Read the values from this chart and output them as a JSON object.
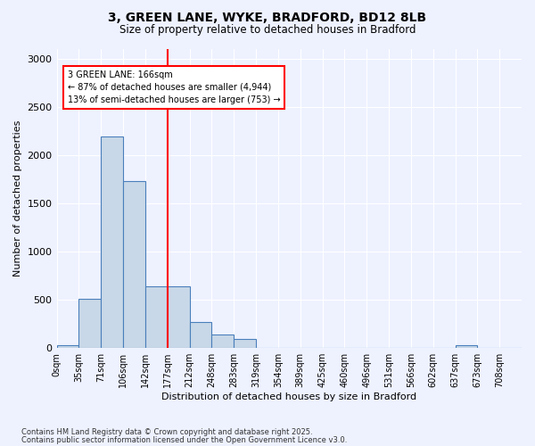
{
  "title_line1": "3, GREEN LANE, WYKE, BRADFORD, BD12 8LB",
  "title_line2": "Size of property relative to detached houses in Bradford",
  "xlabel": "Distribution of detached houses by size in Bradford",
  "ylabel": "Number of detached properties",
  "bins": [
    "0sqm",
    "35sqm",
    "71sqm",
    "106sqm",
    "142sqm",
    "177sqm",
    "212sqm",
    "248sqm",
    "283sqm",
    "319sqm",
    "354sqm",
    "389sqm",
    "425sqm",
    "460sqm",
    "496sqm",
    "531sqm",
    "566sqm",
    "602sqm",
    "637sqm",
    "673sqm",
    "708sqm"
  ],
  "bar_values": [
    30,
    510,
    2190,
    1730,
    640,
    640,
    270,
    145,
    95,
    0,
    0,
    0,
    0,
    0,
    0,
    0,
    0,
    0,
    30,
    0,
    0
  ],
  "bar_color": "#c8d8e8",
  "bar_edge_color": "#4a7fbb",
  "vline_x": 5,
  "vline_color": "red",
  "annotation_title": "3 GREEN LANE: 166sqm",
  "annotation_line1": "← 87% of detached houses are smaller (4,944)",
  "annotation_line2": "13% of semi-detached houses are larger (753) →",
  "ylim": [
    0,
    3100
  ],
  "yticks": [
    0,
    500,
    1000,
    1500,
    2000,
    2500,
    3000
  ],
  "footnote1": "Contains HM Land Registry data © Crown copyright and database right 2025.",
  "footnote2": "Contains public sector information licensed under the Open Government Licence v3.0.",
  "background_color": "#eef2ff"
}
